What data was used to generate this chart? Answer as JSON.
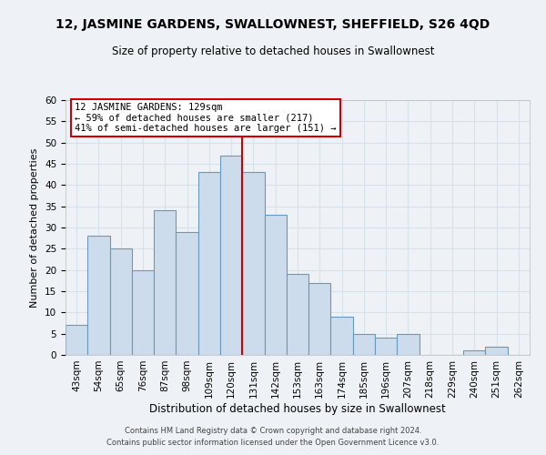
{
  "title": "12, JASMINE GARDENS, SWALLOWNEST, SHEFFIELD, S26 4QD",
  "subtitle": "Size of property relative to detached houses in Swallownest",
  "xlabel": "Distribution of detached houses by size in Swallownest",
  "ylabel": "Number of detached properties",
  "bar_labels": [
    "43sqm",
    "54sqm",
    "65sqm",
    "76sqm",
    "87sqm",
    "98sqm",
    "109sqm",
    "120sqm",
    "131sqm",
    "142sqm",
    "153sqm",
    "163sqm",
    "174sqm",
    "185sqm",
    "196sqm",
    "207sqm",
    "218sqm",
    "229sqm",
    "240sqm",
    "251sqm",
    "262sqm"
  ],
  "bar_heights": [
    7,
    28,
    25,
    20,
    34,
    29,
    43,
    47,
    43,
    33,
    19,
    17,
    9,
    5,
    4,
    5,
    0,
    0,
    1,
    2,
    0
  ],
  "bar_color": "#ccdcec",
  "bar_edge_color": "#6699bb",
  "vline_color": "#cc0000",
  "vline_pos": 7.5,
  "ylim": [
    0,
    60
  ],
  "yticks": [
    0,
    5,
    10,
    15,
    20,
    25,
    30,
    35,
    40,
    45,
    50,
    55,
    60
  ],
  "annotation_title": "12 JASMINE GARDENS: 129sqm",
  "annotation_line1": "← 59% of detached houses are smaller (217)",
  "annotation_line2": "41% of semi-detached houses are larger (151) →",
  "annotation_box_color": "#ffffff",
  "annotation_box_edge": "#cc0000",
  "footer_line1": "Contains HM Land Registry data © Crown copyright and database right 2024.",
  "footer_line2": "Contains public sector information licensed under the Open Government Licence v3.0.",
  "background_color": "#eef2f7",
  "grid_color": "#d8e0e8",
  "title_fontsize": 10,
  "subtitle_fontsize": 8.5,
  "axis_label_fontsize": 8,
  "tick_fontsize": 7.5,
  "footer_fontsize": 6
}
